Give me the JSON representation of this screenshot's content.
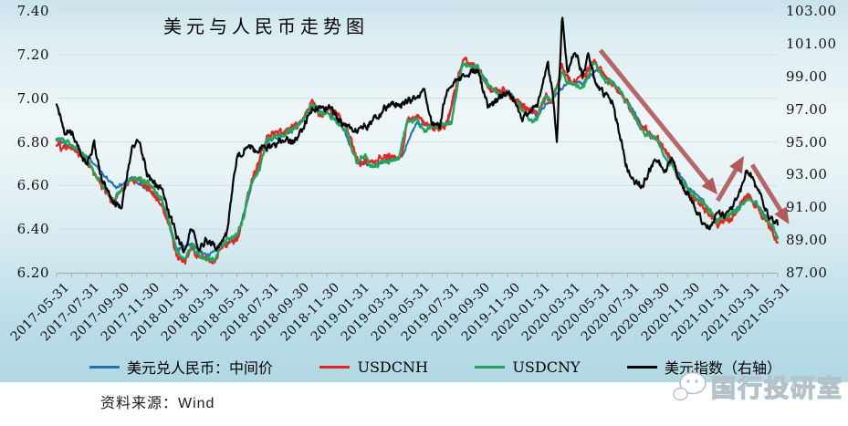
{
  "chart_data": {
    "type": "line",
    "title": "美元与人民币走势图",
    "x_axis_note": "x values are months elapsed since 2017-05-31; labeled every 2 months",
    "x_tick_labels": [
      "2017-05-31",
      "2017-07-31",
      "2017-09-30",
      "2017-11-30",
      "2018-01-31",
      "2018-03-31",
      "2018-05-31",
      "2018-07-31",
      "2018-09-30",
      "2018-11-30",
      "2019-01-31",
      "2019-03-31",
      "2019-05-31",
      "2019-07-31",
      "2019-09-30",
      "2019-11-30",
      "2020-01-31",
      "2020-03-31",
      "2020-05-31",
      "2020-07-31",
      "2020-09-30",
      "2020-11-30",
      "2021-01-31",
      "2021-03-31",
      "2021-05-31"
    ],
    "left_axis": {
      "min": 6.2,
      "max": 7.4,
      "label_values": [
        "7.40",
        "7.20",
        "7.00",
        "6.80",
        "6.60",
        "6.40",
        "6.20"
      ]
    },
    "right_axis": {
      "min": 87,
      "max": 103,
      "label_values": [
        "103.00",
        "101.00",
        "99.00",
        "97.00",
        "95.00",
        "93.00",
        "91.00",
        "89.00",
        "87.00"
      ]
    },
    "grid": "horizontal-only",
    "legend_position": "bottom",
    "series": [
      {
        "key": "mid",
        "name": "美元兑人民币：中间价",
        "color": "#2273b0",
        "axis": "left",
        "x": [
          0,
          2,
          4,
          5,
          7,
          8,
          9,
          10,
          11,
          12,
          13,
          14,
          16,
          17,
          18,
          19,
          20,
          21,
          22,
          23,
          24,
          25,
          26,
          27,
          28,
          29,
          30,
          31,
          32,
          33,
          34,
          35,
          36,
          37,
          38,
          39,
          40,
          41,
          42,
          43,
          44,
          45,
          46,
          47,
          48
        ],
        "values": [
          6.81,
          6.73,
          6.59,
          6.63,
          6.53,
          6.31,
          6.33,
          6.28,
          6.32,
          6.37,
          6.61,
          6.8,
          6.87,
          6.96,
          6.94,
          6.87,
          6.71,
          6.69,
          6.71,
          6.74,
          6.89,
          6.87,
          6.88,
          7.15,
          7.14,
          7.04,
          7.03,
          6.97,
          6.92,
          6.99,
          7.07,
          7.07,
          7.13,
          7.07,
          6.99,
          6.86,
          6.81,
          6.7,
          6.59,
          6.53,
          6.44,
          6.47,
          6.56,
          6.48,
          6.37
        ]
      },
      {
        "key": "usdcnh",
        "name": "USDCNH",
        "color": "#e12a1f",
        "axis": "left",
        "x": [
          0,
          1,
          2,
          3,
          3.8,
          5,
          6,
          7,
          8,
          8.5,
          9,
          9.5,
          10,
          10.5,
          11,
          12,
          12.5,
          13,
          14,
          15,
          16,
          17,
          17.5,
          18,
          19,
          19.5,
          20,
          21,
          22,
          23,
          23.4,
          24,
          25,
          26,
          26.5,
          27,
          28,
          28.5,
          29,
          30,
          31,
          32,
          32.6,
          33,
          33.65,
          34,
          35,
          35.7,
          36,
          37,
          38,
          39,
          40,
          41,
          42,
          43,
          44,
          45,
          46,
          47,
          48
        ],
        "values": [
          6.79,
          6.77,
          6.71,
          6.59,
          6.51,
          6.62,
          6.6,
          6.52,
          6.29,
          6.25,
          6.32,
          6.27,
          6.26,
          6.25,
          6.32,
          6.36,
          6.48,
          6.63,
          6.81,
          6.84,
          6.88,
          6.98,
          6.93,
          6.95,
          6.89,
          6.84,
          6.71,
          6.7,
          6.72,
          6.74,
          6.92,
          6.91,
          6.86,
          6.89,
          7.04,
          7.18,
          7.15,
          7.06,
          7.04,
          7.03,
          6.96,
          6.92,
          7.02,
          6.99,
          7.16,
          7.09,
          7.07,
          7.17,
          7.14,
          7.07,
          6.97,
          6.84,
          6.8,
          6.68,
          6.57,
          6.51,
          6.42,
          6.46,
          6.56,
          6.46,
          6.35
        ]
      },
      {
        "key": "usdcny",
        "name": "USDCNY",
        "color": "#26a35d",
        "axis": "left",
        "x": [
          0,
          1,
          2,
          3,
          3.8,
          5,
          6,
          7,
          8,
          8.5,
          9,
          9.5,
          10,
          10.5,
          11,
          12,
          12.5,
          13,
          13.5,
          14,
          15,
          16,
          17,
          17.5,
          18,
          19,
          19.3,
          20,
          20.5,
          21,
          22,
          22.8,
          23.3,
          24,
          24.5,
          25,
          26,
          26.3,
          26.6,
          27,
          28,
          28.5,
          29,
          29.5,
          30,
          30.5,
          31,
          31.5,
          32,
          32.5,
          33,
          33.65,
          34,
          35,
          35.7,
          36,
          36.5,
          37,
          38,
          39,
          40,
          40.5,
          41,
          42,
          43,
          44,
          44.5,
          45,
          45.5,
          46,
          46.5,
          47,
          47.5,
          48
        ],
        "values": [
          6.81,
          6.78,
          6.72,
          6.6,
          6.53,
          6.63,
          6.61,
          6.53,
          6.3,
          6.26,
          6.33,
          6.28,
          6.27,
          6.26,
          6.33,
          6.37,
          6.47,
          6.62,
          6.68,
          6.8,
          6.83,
          6.87,
          6.97,
          6.93,
          6.94,
          6.88,
          6.85,
          6.7,
          6.74,
          6.69,
          6.71,
          6.73,
          6.9,
          6.9,
          6.85,
          6.87,
          6.88,
          6.88,
          7.02,
          7.16,
          7.15,
          7.07,
          7.04,
          7.0,
          7.03,
          6.99,
          6.96,
          6.89,
          6.91,
          7.0,
          6.99,
          7.12,
          7.08,
          7.06,
          7.16,
          7.14,
          7.08,
          7.07,
          6.98,
          6.85,
          6.81,
          6.73,
          6.69,
          6.58,
          6.53,
          6.43,
          6.46,
          6.47,
          6.5,
          6.55,
          6.52,
          6.47,
          6.43,
          6.36
        ]
      },
      {
        "key": "dxy",
        "name": "美元指数（右轴）",
        "color": "#050505",
        "axis": "right",
        "x": [
          0,
          0.5,
          1,
          1.4,
          2,
          2.5,
          3,
          4,
          4.3,
          5,
          5.5,
          6,
          7,
          8,
          8.5,
          9,
          9.5,
          10,
          10.8,
          11.3,
          12,
          13,
          14,
          15,
          16,
          17,
          18,
          19,
          20,
          21,
          22,
          23,
          24,
          24.5,
          25,
          25.5,
          26,
          27,
          28,
          28.7,
          29,
          30,
          30.8,
          31,
          32,
          32.7,
          33,
          33.3,
          33.65,
          34,
          34.5,
          35,
          35.4,
          36,
          37,
          37.5,
          38,
          38.5,
          39,
          39.5,
          40,
          40.5,
          41,
          41.5,
          42,
          43,
          43.5,
          44,
          44.5,
          45,
          45.5,
          46,
          46.5,
          47,
          47.5,
          48
        ],
        "values": [
          97.3,
          95.6,
          95.6,
          94.8,
          93.4,
          95.0,
          92.7,
          91.3,
          91.0,
          94.6,
          94.9,
          93.0,
          92.1,
          89.1,
          88.4,
          89.6,
          88.5,
          89.0,
          88.4,
          89.3,
          94.0,
          94.5,
          94.6,
          95.1,
          95.1,
          97.1,
          97.2,
          96.2,
          95.6,
          96.2,
          97.2,
          97.5,
          97.7,
          98.0,
          96.1,
          95.9,
          98.4,
          98.9,
          99.4,
          97.2,
          97.3,
          98.3,
          96.8,
          96.4,
          97.4,
          99.8,
          98.1,
          94.9,
          102.9,
          99.2,
          100.4,
          99.0,
          100.2,
          98.3,
          97.4,
          95.3,
          93.3,
          92.5,
          92.1,
          93.3,
          93.9,
          93.3,
          94.0,
          92.5,
          91.9,
          89.9,
          89.6,
          90.6,
          90.4,
          90.9,
          91.9,
          93.2,
          92.1,
          91.3,
          90.2,
          90.0
        ]
      }
    ],
    "trend_arrows": [
      {
        "axis": "right",
        "from": [
          36.2,
          100.6
        ],
        "to": [
          43.8,
          92.0
        ]
      },
      {
        "axis": "right",
        "from": [
          44.0,
          91.4
        ],
        "to": [
          45.6,
          93.9
        ]
      },
      {
        "axis": "right",
        "from": [
          46.3,
          93.6
        ],
        "to": [
          48.6,
          90.2
        ]
      }
    ],
    "arrow_color": "#b25a5a"
  },
  "footer": {
    "source": "资料来源：Wind"
  },
  "watermark": {
    "text": "国行投研室"
  }
}
